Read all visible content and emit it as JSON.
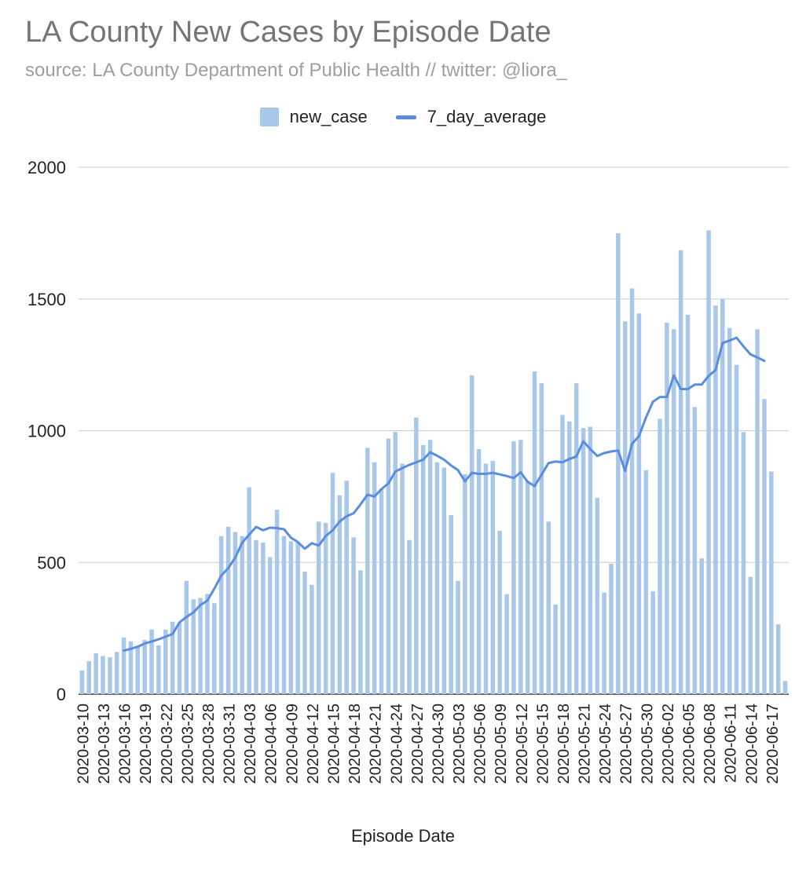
{
  "chart_data": {
    "type": "bar",
    "title": "LA County New Cases by Episode Date",
    "subtitle": "source: LA County Department of Public Health // twitter: @liora_",
    "xlabel": "Episode Date",
    "ylabel": "",
    "ylim": [
      0,
      2000
    ],
    "yticks": [
      0,
      500,
      1000,
      1500,
      2000
    ],
    "grid": true,
    "legend_position": "top",
    "xtick_labels": [
      "2020-03-10",
      "2020-03-13",
      "2020-03-16",
      "2020-03-19",
      "2020-03-22",
      "2020-03-25",
      "2020-03-28",
      "2020-03-31",
      "2020-04-03",
      "2020-04-06",
      "2020-04-09",
      "2020-04-12",
      "2020-04-15",
      "2020-04-18",
      "2020-04-21",
      "2020-04-24",
      "2020-04-27",
      "2020-04-30",
      "2020-05-03",
      "2020-05-06",
      "2020-05-09",
      "2020-05-12",
      "2020-05-15",
      "2020-05-18",
      "2020-05-21",
      "2020-05-24",
      "2020-05-27",
      "2020-05-30",
      "2020-06-02",
      "2020-06-05",
      "2020-06-08",
      "2020-06-11",
      "2020-06-14",
      "2020-06-17"
    ],
    "series": [
      {
        "name": "new_case",
        "kind": "bar",
        "color": "#a8c7e9",
        "values": [
          90,
          125,
          155,
          145,
          140,
          160,
          215,
          200,
          180,
          205,
          245,
          185,
          245,
          275,
          270,
          430,
          360,
          365,
          380,
          345,
          600,
          635,
          615,
          600,
          785,
          585,
          575,
          520,
          700,
          600,
          580,
          575,
          465,
          415,
          655,
          650,
          840,
          755,
          810,
          595,
          470,
          935,
          880,
          780,
          970,
          995,
          875,
          585,
          1050,
          945,
          965,
          880,
          860,
          680,
          430,
          835,
          1210,
          930,
          875,
          885,
          620,
          380,
          960,
          965,
          810,
          1225,
          1180,
          655,
          340,
          1060,
          1035,
          1180,
          1010,
          1015,
          745,
          385,
          495,
          1750,
          1415,
          1540,
          1445,
          850,
          390,
          1045,
          1410,
          1385,
          1685,
          1440,
          1090,
          515,
          1760,
          1475,
          1500,
          1390,
          1250,
          995,
          445,
          1385,
          1120,
          845,
          265,
          50
        ]
      },
      {
        "name": "7_day_average",
        "kind": "line",
        "color": "#5a8de0",
        "start_date": "2020-03-16",
        "values": [
          165,
          172,
          180,
          192,
          200,
          208,
          218,
          228,
          272,
          293,
          310,
          338,
          355,
          400,
          450,
          478,
          518,
          575,
          605,
          635,
          622,
          632,
          630,
          626,
          594,
          577,
          552,
          573,
          564,
          600,
          622,
          655,
          675,
          686,
          720,
          757,
          750,
          778,
          800,
          845,
          858,
          870,
          880,
          890,
          918,
          905,
          890,
          868,
          850,
          808,
          840,
          836,
          836,
          840,
          834,
          828,
          820,
          842,
          806,
          790,
          833,
          877,
          883,
          880,
          893,
          902,
          960,
          930,
          904,
          915,
          921,
          925,
          847,
          950,
          980,
          1050,
          1110,
          1128,
          1128,
          1210,
          1158,
          1158,
          1175,
          1175,
          1208,
          1230,
          1333,
          1342,
          1353,
          1320,
          1290,
          1278,
          1265
        ]
      }
    ]
  }
}
